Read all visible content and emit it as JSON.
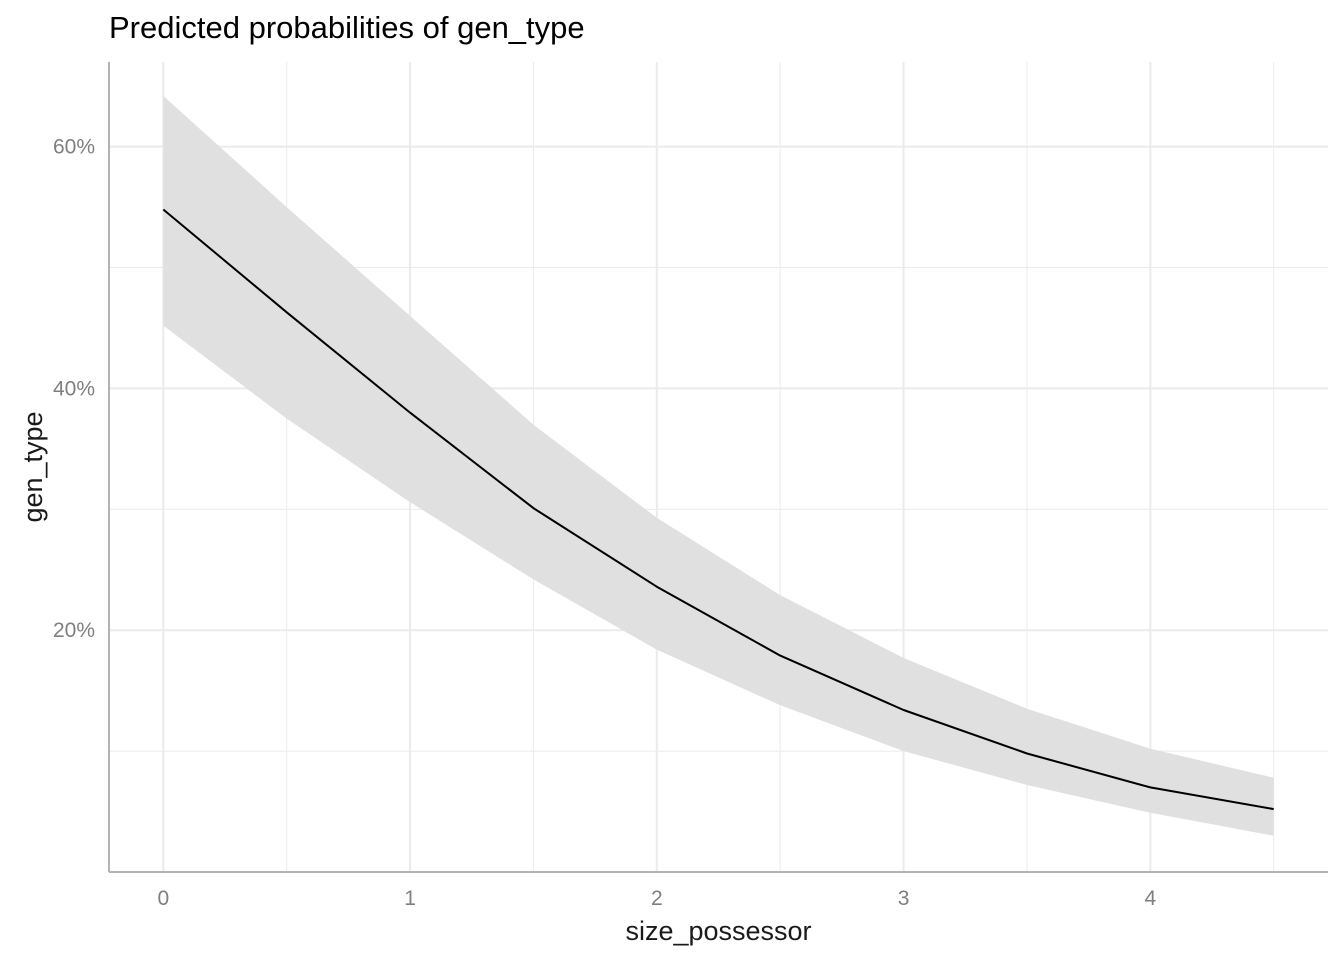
{
  "chart_data": {
    "type": "line",
    "title": "Predicted probabilities of gen_type",
    "xlabel": "size_possessor",
    "ylabel": "gen_type",
    "xlim": [
      -0.22,
      4.72
    ],
    "ylim": [
      0,
      67
    ],
    "x_ticks": [
      0,
      1,
      2,
      3,
      4
    ],
    "x_tick_labels": [
      "0",
      "1",
      "2",
      "3",
      "4"
    ],
    "y_ticks": [
      20,
      40,
      60
    ],
    "y_tick_labels": [
      "20%",
      "40%",
      "60%"
    ],
    "y_minor_ticks": [
      10,
      30,
      50
    ],
    "x_minor_ticks": [
      0.5,
      1.5,
      2.5,
      3.5,
      4.5
    ],
    "grid": true,
    "series": [
      {
        "x": [
          0,
          0.5,
          1,
          1.5,
          2,
          2.5,
          3,
          3.5,
          4,
          4.5
        ],
        "values": [
          54.8,
          46.3,
          38.0,
          30.1,
          23.6,
          17.9,
          13.4,
          9.8,
          7.0,
          5.2
        ],
        "ci_lower": [
          45.2,
          37.5,
          30.6,
          24.2,
          18.4,
          13.8,
          10.0,
          7.2,
          4.9,
          3.0
        ],
        "ci_upper": [
          64.2,
          55.0,
          46.0,
          37.0,
          29.3,
          22.9,
          17.7,
          13.5,
          10.2,
          7.8
        ],
        "color": "#000000",
        "band_color": "#e0e0e0"
      }
    ],
    "grid_color": "#ebebeb",
    "axis_color": "#b3b3b3"
  }
}
